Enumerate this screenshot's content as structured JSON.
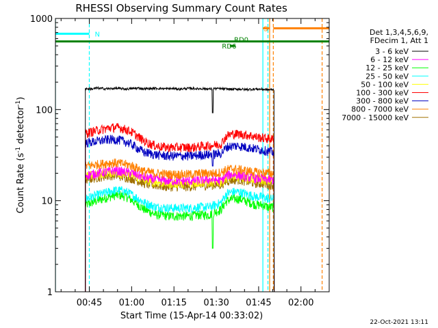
{
  "chart_data": {
    "type": "line",
    "title": "RHESSI Observing Summary Count Rates",
    "xlabel": "Start Time (15-Apr-14 00:33:02)",
    "ylabel_main": "Count Rate (s",
    "ylabel_sup1": "-1",
    "ylabel_mid": " detector",
    "ylabel_sup2": "-1",
    "ylabel_end": ")",
    "yscale": "log",
    "ylim": [
      1,
      1000
    ],
    "xlim": [
      "00:33",
      "02:10"
    ],
    "x_ticks": [
      {
        "t": 45,
        "label": "00:45"
      },
      {
        "t": 60,
        "label": "01:00"
      },
      {
        "t": 75,
        "label": "01:15"
      },
      {
        "t": 90,
        "label": "01:30"
      },
      {
        "t": 105,
        "label": "01:45"
      },
      {
        "t": 120,
        "label": "02:00"
      }
    ],
    "x_minor_ticks": [
      35,
      40,
      50,
      55,
      65,
      70,
      80,
      85,
      95,
      100,
      110,
      115,
      125,
      130
    ],
    "y_ticks": [
      {
        "v": 1,
        "label": "1"
      },
      {
        "v": 10,
        "label": "10"
      },
      {
        "v": 100,
        "label": "100"
      },
      {
        "v": 1000,
        "label": "1000"
      }
    ],
    "legend_header": [
      "Det 1,3,4,5,6,9,",
      "FDecim 1, Att 1"
    ],
    "legend_placement": "right",
    "series": [
      {
        "name": "3 - 6 keV",
        "color": "#000000",
        "values": [
          170,
          168,
          172,
          170,
          169,
          171,
          170,
          168,
          170,
          172,
          169,
          170,
          171,
          170,
          169,
          170,
          168,
          170,
          171,
          169,
          170,
          168,
          170,
          169,
          168,
          167,
          168,
          166,
          167,
          168,
          167,
          165,
          166
        ]
      },
      {
        "name": "6 - 12 keV",
        "color": "#ff00ff",
        "values": [
          19,
          19.5,
          20,
          20.5,
          21,
          21.5,
          21,
          20.5,
          20,
          19,
          18,
          17.5,
          17,
          16.8,
          16.5,
          16.5,
          16.5,
          16.5,
          16.5,
          16.7,
          17,
          17,
          17,
          16.5,
          19,
          19.5,
          19,
          18.5,
          18,
          17.5,
          17.5,
          17,
          17
        ]
      },
      {
        "name": "12 - 25 keV",
        "color": "#00ff00",
        "values": [
          9,
          9.5,
          10,
          10.5,
          11,
          11.5,
          11.5,
          11,
          10,
          9,
          8,
          7.5,
          7,
          7,
          6.8,
          6.8,
          6.8,
          6.8,
          6.8,
          7,
          7,
          7,
          7.5,
          8,
          10,
          10.5,
          10.5,
          10,
          9.5,
          9,
          9,
          8.5,
          8.5
        ]
      },
      {
        "name": "25 - 50 keV",
        "color": "#00ffff",
        "values": [
          10.5,
          11,
          11.5,
          12,
          12.5,
          13,
          13,
          12.5,
          11.5,
          10.5,
          9.5,
          9,
          8.5,
          8.5,
          8.3,
          8.3,
          8.3,
          8.3,
          8.3,
          8.5,
          8.5,
          8.5,
          9,
          9.5,
          12,
          12.5,
          12.5,
          12,
          11.5,
          11,
          11,
          10.5,
          10.5
        ]
      },
      {
        "name": "50 - 100 keV",
        "color": "#ffff00",
        "values": [
          18.5,
          19,
          19.5,
          20,
          20.5,
          20.5,
          20,
          19.5,
          19,
          18,
          17,
          16.5,
          16,
          15.8,
          15.5,
          15.5,
          15.5,
          15.5,
          15.5,
          15.8,
          16,
          16,
          16,
          16,
          18,
          18.5,
          18.5,
          18,
          17.5,
          17,
          17,
          16.5,
          16.5
        ]
      },
      {
        "name": "100 - 300 keV",
        "color": "#ff0000",
        "values": [
          55,
          57,
          59,
          61,
          63,
          64,
          63,
          60,
          56,
          50,
          45,
          42,
          40,
          39,
          38.5,
          38.5,
          38.5,
          38.5,
          38.5,
          39,
          40,
          40,
          41,
          42,
          52,
          54,
          54,
          53,
          52,
          50,
          49,
          48,
          47
        ]
      },
      {
        "name": "300 - 800 keV",
        "color": "#0000c0",
        "values": [
          43,
          44,
          45,
          46,
          47,
          47,
          46,
          44,
          41,
          37,
          34,
          33,
          32,
          31.5,
          31,
          31,
          31,
          31,
          31,
          31.5,
          32,
          32,
          32.5,
          33,
          39,
          40,
          40,
          39,
          38,
          37,
          36,
          35,
          34
        ]
      },
      {
        "name": "800 - 7000 keV",
        "color": "#ff8000",
        "values": [
          24,
          24.5,
          25,
          25.5,
          26,
          26,
          25.5,
          25,
          24,
          22.5,
          21,
          20.5,
          20,
          19.8,
          19.5,
          19.5,
          19.5,
          19.5,
          19.5,
          19.8,
          20,
          20,
          20,
          20.5,
          22,
          22.5,
          22,
          21.5,
          21,
          20.5,
          20.5,
          20,
          20
        ]
      },
      {
        "name": "7000 - 15000 keV",
        "color": "#a07000",
        "values": [
          17,
          17.5,
          18,
          18.5,
          19,
          19,
          18.5,
          18,
          17.5,
          16.5,
          15.5,
          15,
          14.8,
          14.5,
          14.3,
          14.3,
          14.3,
          14.3,
          14.3,
          14.5,
          14.8,
          14.8,
          15,
          15,
          16.5,
          17,
          17,
          16.5,
          16,
          15.5,
          15.5,
          15,
          15
        ]
      }
    ],
    "series_x_start": 43.6,
    "series_x_end": 110.5,
    "flags": [
      {
        "name": "N",
        "color": "#00ffff",
        "value": 680
      },
      {
        "name": "S",
        "color": "#ff8000",
        "value": 780
      },
      {
        "name": "RD0",
        "color": "#008000",
        "value": 560
      },
      {
        "name": "RD6",
        "color": "#008000",
        "value": 500
      }
    ],
    "vlines": [
      {
        "t": 33.0,
        "color": "#00ffff",
        "style": "solid"
      },
      {
        "t": 45.0,
        "color": "#00ffff",
        "style": "dashed"
      },
      {
        "t": 106.5,
        "color": "#00ffff",
        "style": "solid"
      },
      {
        "t": 108.3,
        "color": "#00ffff",
        "style": "dashed"
      },
      {
        "t": 108.9,
        "color": "#ff8000",
        "style": "solid"
      },
      {
        "t": 110.2,
        "color": "#ff8000",
        "style": "dashed"
      },
      {
        "t": 127.5,
        "color": "#ff8000",
        "style": "dashed"
      }
    ]
  },
  "footer": {
    "date_stamp": "22-Oct-2021 13:11"
  }
}
